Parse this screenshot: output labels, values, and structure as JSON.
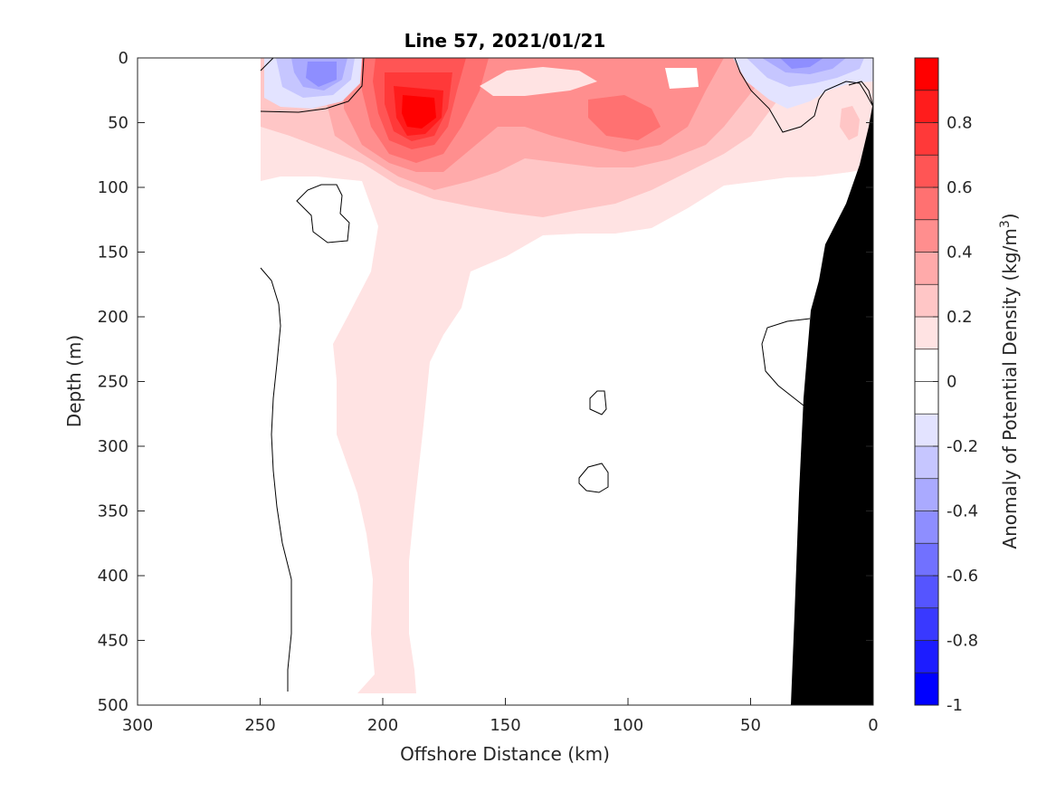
{
  "chart_data": {
    "type": "heatmap",
    "subtype": "filled-contour-section",
    "title": "Line 57, 2021/01/21",
    "xlabel": "Offshore Distance (km)",
    "ylabel": "Depth (m)",
    "xlim": [
      300,
      0
    ],
    "x_reversed": true,
    "ylim": [
      0,
      500
    ],
    "y_reversed": true,
    "xticks": [
      "300",
      "250",
      "200",
      "150",
      "100",
      "50",
      "0"
    ],
    "yticks": [
      "0",
      "50",
      "100",
      "150",
      "200",
      "250",
      "300",
      "350",
      "400",
      "450",
      "500"
    ],
    "colorbar": {
      "label": "Anomaly of Potential Density (kg/m",
      "label_superscript": "3",
      "label_close": ")",
      "range": [
        -1,
        1
      ],
      "step": 0.1,
      "ticks": [
        "-1",
        "-0.8",
        "-0.6",
        "-0.4",
        "-0.2",
        "0",
        "0.2",
        "0.4",
        "0.6",
        "0.8"
      ],
      "colors": [
        "#0000ff",
        "#1c1cff",
        "#3939ff",
        "#5555ff",
        "#7171ff",
        "#8e8eff",
        "#aaaaff",
        "#c6c6ff",
        "#e3e3ff",
        "#ffffff",
        "#ffffff",
        "#ffe3e3",
        "#ffc6c6",
        "#ffaaaa",
        "#ff8e8e",
        "#ff7171",
        "#ff5555",
        "#ff3939",
        "#ff1c1c",
        "#ff0000"
      ]
    },
    "features": {
      "max_positive_anomaly": {
        "x_km": 187,
        "depth_m": 45,
        "value": 0.9
      },
      "secondary_positive_max": {
        "x_km": 103,
        "depth_m": 45,
        "value": 0.5
      },
      "negative_patches": [
        {
          "x_km": 225,
          "depth_m": 12,
          "value": -0.4
        },
        {
          "x_km": 33,
          "depth_m": 10,
          "value": -0.4
        }
      ],
      "plume_0p1_extent": {
        "x_km_range": [
          185,
          200
        ],
        "depth_m_range": [
          0,
          490
        ]
      },
      "bathymetry": {
        "fill": "black",
        "shelf_depth_at_x": [
          [
            0,
            35
          ],
          [
            10,
            110
          ],
          [
            20,
            150
          ],
          [
            25,
            195
          ],
          [
            30,
            330
          ],
          [
            33,
            500
          ]
        ]
      }
    },
    "grid": false,
    "legend": "none"
  }
}
